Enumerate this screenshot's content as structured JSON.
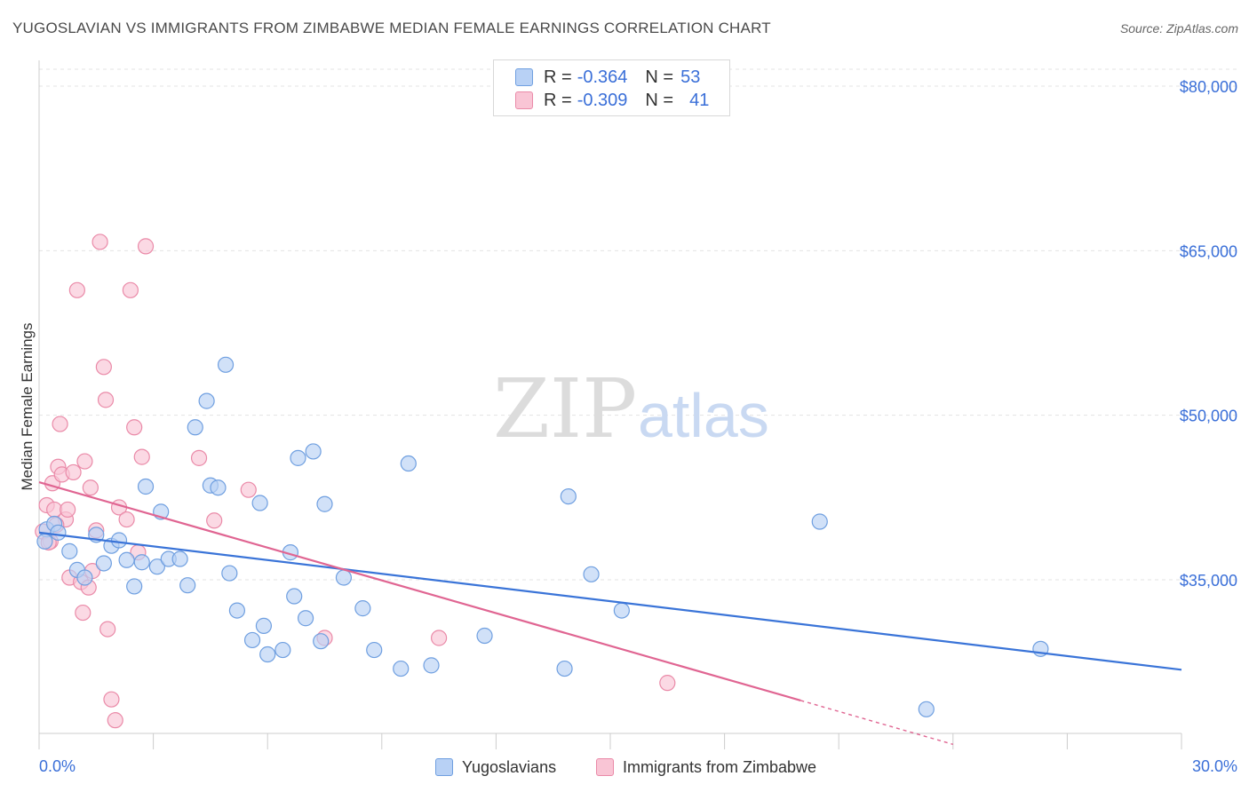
{
  "header": {
    "title": "YUGOSLAVIAN VS IMMIGRANTS FROM ZIMBABWE MEDIAN FEMALE EARNINGS CORRELATION CHART",
    "source": "Source: ZipAtlas.com"
  },
  "legend": {
    "rows": [
      {
        "r_label": "R =",
        "r_value": "-0.364",
        "n_label": "N =",
        "n_value": "53",
        "color": "#b8d1f5",
        "border": "#6f9fe0"
      },
      {
        "r_label": "R =",
        "r_value": "-0.309",
        "n_label": "N =",
        "n_value": "41",
        "color": "#f9c5d5",
        "border": "#ea8aa8"
      }
    ]
  },
  "bottom_legend": {
    "series1": "Yugoslavians",
    "series2": "Immigrants from Zimbabwe"
  },
  "watermark": {
    "zip": "ZIP",
    "atlas": "atlas"
  },
  "chart_data": {
    "type": "scatter",
    "title": "YUGOSLAVIAN VS IMMIGRANTS FROM ZIMBABWE MEDIAN FEMALE EARNINGS CORRELATION CHART",
    "ylabel": "Median Female Earnings",
    "xlabel": "",
    "xlim": [
      0,
      30
    ],
    "ylim": [
      20000,
      82000
    ],
    "x_tick_labels": [
      "0.0%",
      "30.0%"
    ],
    "y_ticks": [
      35000,
      50000,
      65000,
      80000
    ],
    "y_tick_labels": [
      "$35,000",
      "$50,000",
      "$65,000",
      "$80,000"
    ],
    "grid": true,
    "colors": {
      "series1": "#3a74d8",
      "series2": "#e06592",
      "axis_text": "#3a6fd8"
    },
    "series": [
      {
        "name": "Yugoslavians",
        "fill": "#b8d1f5",
        "stroke": "#6f9fe0",
        "trend": {
          "x0": 0,
          "y0": 39300,
          "x1": 30,
          "y1": 26800,
          "dashed_from": null
        },
        "points": [
          [
            0.2,
            39600
          ],
          [
            0.4,
            40100
          ],
          [
            0.5,
            39300
          ],
          [
            0.8,
            37600
          ],
          [
            1.0,
            35900
          ],
          [
            1.2,
            35200
          ],
          [
            1.5,
            39100
          ],
          [
            1.7,
            36500
          ],
          [
            1.9,
            38100
          ],
          [
            2.1,
            38600
          ],
          [
            2.3,
            36800
          ],
          [
            2.5,
            34400
          ],
          [
            2.7,
            36600
          ],
          [
            2.8,
            43500
          ],
          [
            3.1,
            36200
          ],
          [
            3.2,
            41200
          ],
          [
            3.4,
            36900
          ],
          [
            3.7,
            36900
          ],
          [
            3.9,
            34500
          ],
          [
            4.1,
            48900
          ],
          [
            4.4,
            51300
          ],
          [
            4.5,
            43600
          ],
          [
            4.7,
            43400
          ],
          [
            4.9,
            54600
          ],
          [
            5.0,
            35600
          ],
          [
            5.2,
            32200
          ],
          [
            5.6,
            29500
          ],
          [
            5.8,
            42000
          ],
          [
            5.9,
            30800
          ],
          [
            6.0,
            28200
          ],
          [
            6.4,
            28600
          ],
          [
            6.6,
            37500
          ],
          [
            6.7,
            33500
          ],
          [
            6.8,
            46100
          ],
          [
            7.0,
            31500
          ],
          [
            7.2,
            46700
          ],
          [
            7.4,
            29400
          ],
          [
            7.5,
            41900
          ],
          [
            8.0,
            35200
          ],
          [
            8.5,
            32400
          ],
          [
            8.8,
            28600
          ],
          [
            9.5,
            26900
          ],
          [
            9.7,
            45600
          ],
          [
            10.3,
            27200
          ],
          [
            11.7,
            29900
          ],
          [
            13.8,
            26900
          ],
          [
            13.9,
            42600
          ],
          [
            14.5,
            35500
          ],
          [
            15.3,
            32200
          ],
          [
            20.5,
            40300
          ],
          [
            23.3,
            23200
          ],
          [
            26.3,
            28700
          ],
          [
            0.15,
            38500
          ]
        ]
      },
      {
        "name": "Immigrants from Zimbabwe",
        "fill": "#f9c5d5",
        "stroke": "#ea8aa8",
        "trend": {
          "x0": 0,
          "y0": 43900,
          "x1": 20.0,
          "y1": 24000,
          "dashed_from": 20.0,
          "dash_to_x": 24.0,
          "dash_to_y": 20000
        },
        "points": [
          [
            0.1,
            39400
          ],
          [
            0.2,
            41800
          ],
          [
            0.3,
            38500
          ],
          [
            0.35,
            43800
          ],
          [
            0.4,
            41400
          ],
          [
            0.5,
            45300
          ],
          [
            0.55,
            49200
          ],
          [
            0.6,
            44600
          ],
          [
            0.7,
            40500
          ],
          [
            0.75,
            41400
          ],
          [
            0.8,
            35200
          ],
          [
            0.9,
            44800
          ],
          [
            1.0,
            61400
          ],
          [
            1.1,
            34800
          ],
          [
            1.15,
            32000
          ],
          [
            1.2,
            45800
          ],
          [
            1.3,
            34300
          ],
          [
            1.35,
            43400
          ],
          [
            1.4,
            35800
          ],
          [
            1.5,
            39500
          ],
          [
            1.6,
            65800
          ],
          [
            1.7,
            54400
          ],
          [
            1.75,
            51400
          ],
          [
            1.8,
            30500
          ],
          [
            1.9,
            24100
          ],
          [
            2.0,
            22200
          ],
          [
            2.1,
            41600
          ],
          [
            2.3,
            40500
          ],
          [
            2.4,
            61400
          ],
          [
            2.5,
            48900
          ],
          [
            2.6,
            37500
          ],
          [
            2.7,
            46200
          ],
          [
            2.8,
            65400
          ],
          [
            4.2,
            46100
          ],
          [
            4.6,
            40400
          ],
          [
            5.5,
            43200
          ],
          [
            7.5,
            29700
          ],
          [
            10.5,
            29700
          ],
          [
            16.5,
            25600
          ],
          [
            0.25,
            38400
          ],
          [
            0.45,
            40000
          ]
        ]
      }
    ]
  }
}
